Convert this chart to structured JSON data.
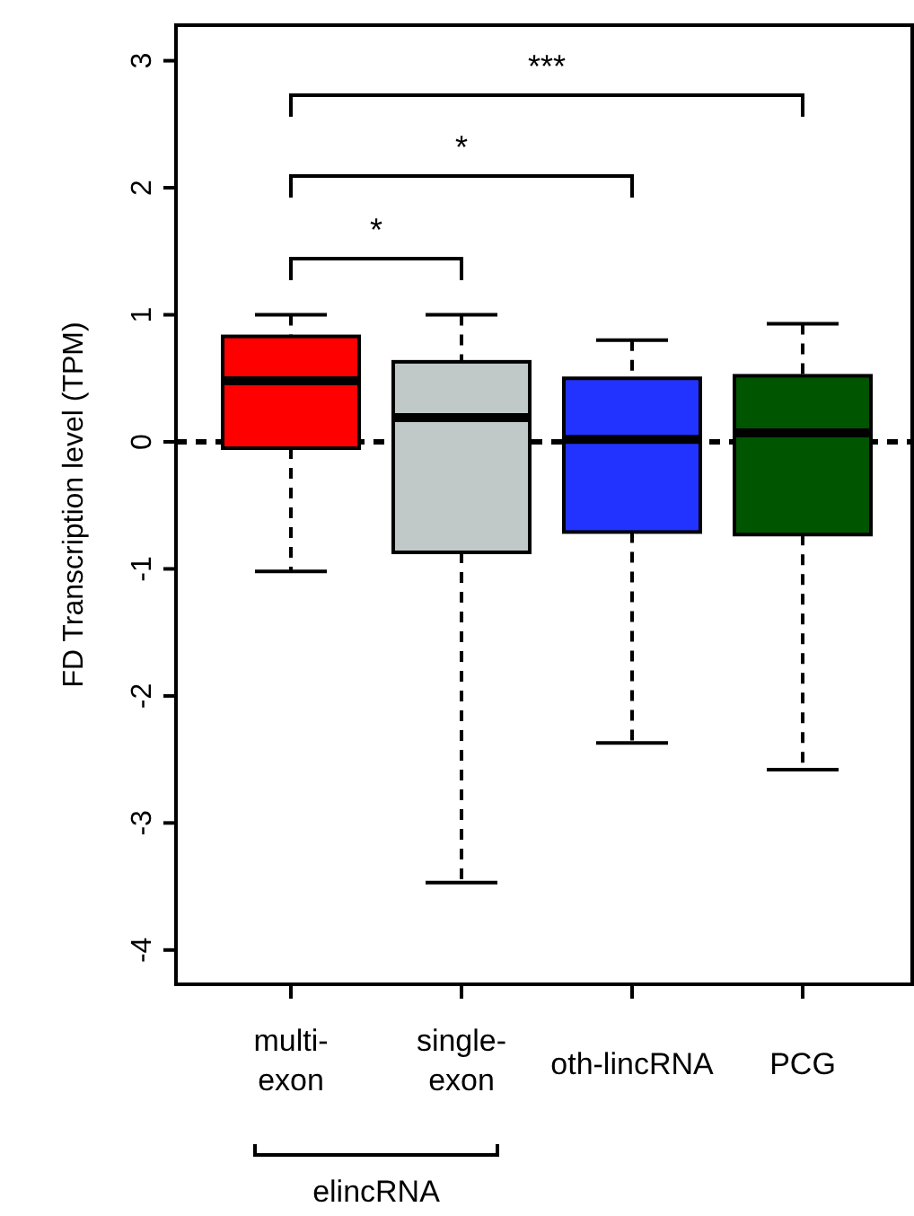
{
  "chart_data": {
    "type": "box",
    "ylabel": "FD Transcription level (TPM)",
    "categories": [
      "multi-\nexon",
      "single-\nexon",
      "oth-lincRNA",
      "PCG"
    ],
    "colors": [
      "#ff0000",
      "#c0c8c8",
      "#2233ff",
      "#005500"
    ],
    "boxes": [
      {
        "low": -1.02,
        "q1": -0.05,
        "median": 0.48,
        "q3": 0.83,
        "high": 1.0
      },
      {
        "low": -3.47,
        "q1": -0.87,
        "median": 0.19,
        "q3": 0.63,
        "high": 1.0
      },
      {
        "low": -2.37,
        "q1": -0.71,
        "median": 0.02,
        "q3": 0.5,
        "high": 0.8
      },
      {
        "low": -2.58,
        "q1": -0.73,
        "median": 0.07,
        "q3": 0.52,
        "high": 0.93
      }
    ],
    "ylim": [
      -4.27,
      3.28
    ],
    "yticks": [
      -4,
      -3,
      -2,
      -1,
      0,
      1,
      2,
      3
    ],
    "ref_lines": [
      {
        "axis": "y",
        "value": 0,
        "line_style": "dashed",
        "color": "#000000"
      }
    ],
    "annotations": [
      "*",
      "*",
      "***",
      "elincRNA"
    ]
  }
}
